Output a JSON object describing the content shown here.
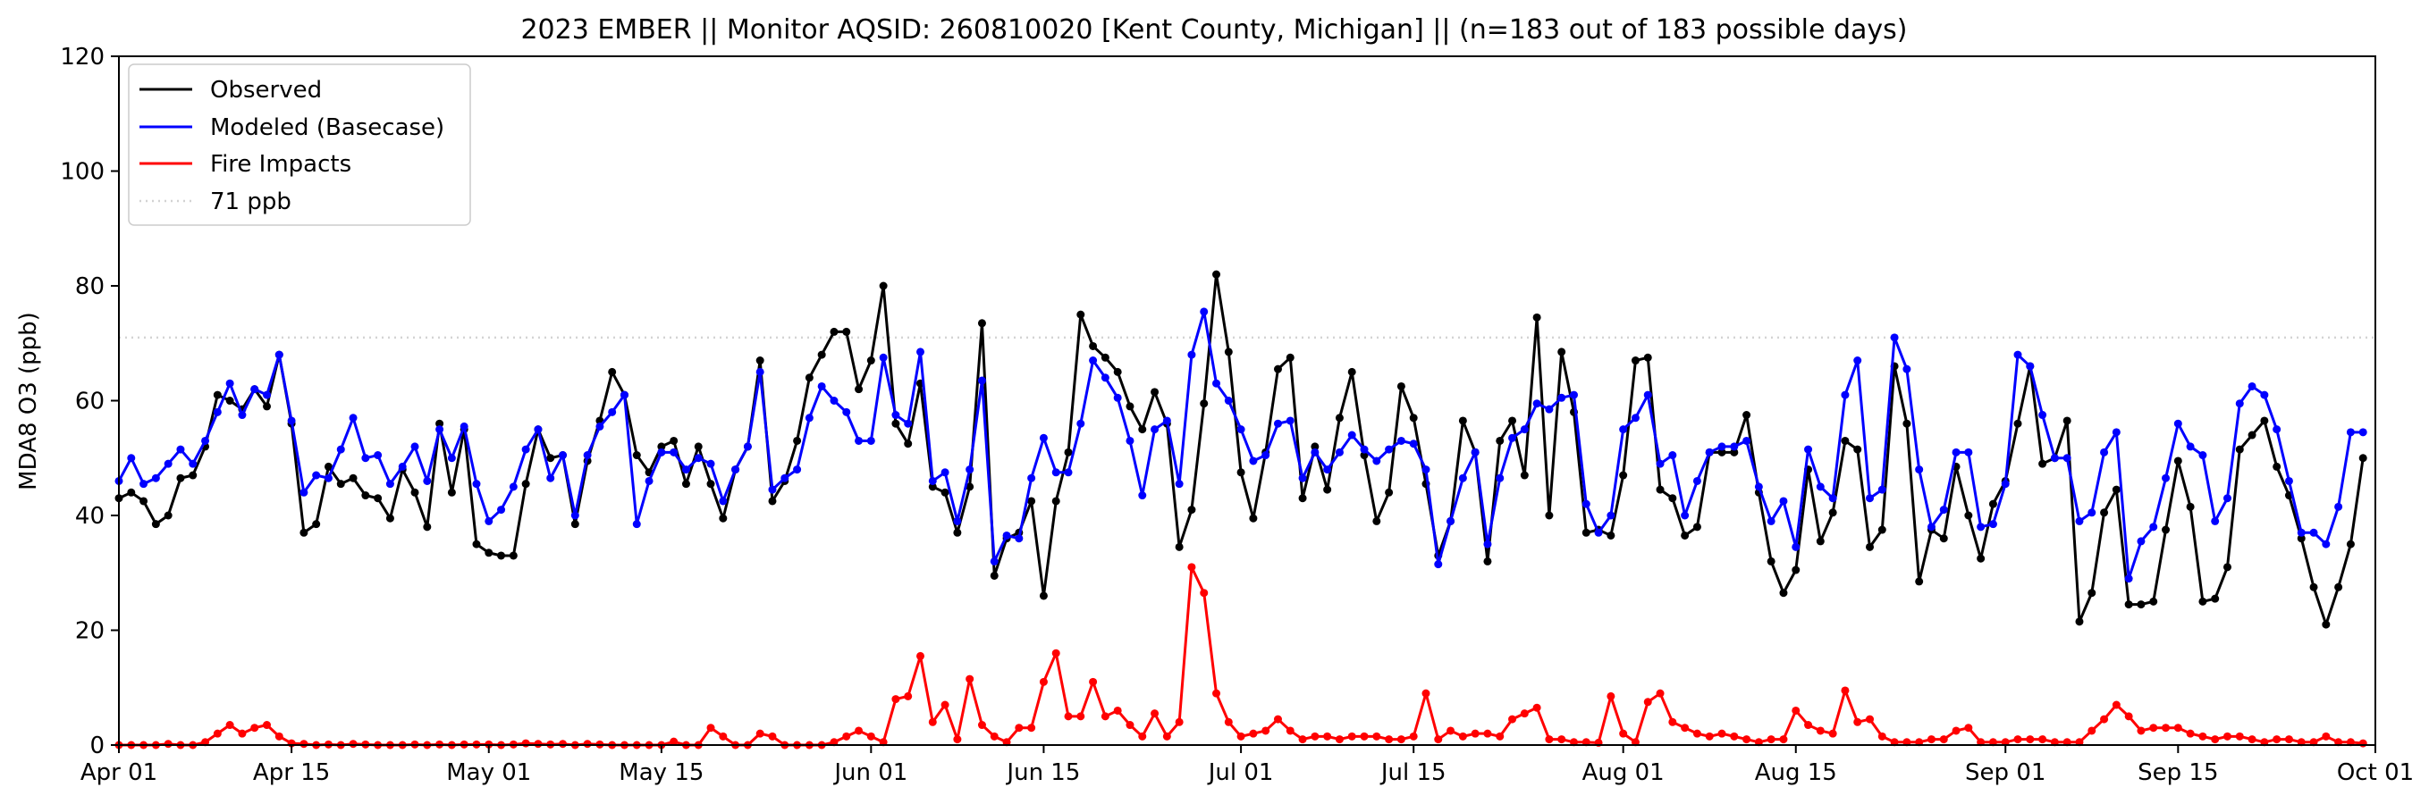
{
  "chart_data": {
    "type": "line",
    "title": "2023 EMBER || Monitor AQSID: 260810020 [Kent County, Michigan] || (n=183 out of 183 possible days)",
    "xlabel": "",
    "ylabel": "MDA8 O3 (ppb)",
    "x_start": "2023-04-01",
    "x_end": "2023-10-01",
    "xlim": [
      "2023-04-01",
      "2023-10-01"
    ],
    "ylim": [
      0,
      120
    ],
    "yticks": [
      0,
      20,
      40,
      60,
      80,
      100,
      120
    ],
    "xticks": [
      {
        "date": "2023-04-01",
        "label": "Apr 01"
      },
      {
        "date": "2023-04-15",
        "label": "Apr 15"
      },
      {
        "date": "2023-05-01",
        "label": "May 01"
      },
      {
        "date": "2023-05-15",
        "label": "May 15"
      },
      {
        "date": "2023-06-01",
        "label": "Jun 01"
      },
      {
        "date": "2023-06-15",
        "label": "Jun 15"
      },
      {
        "date": "2023-07-01",
        "label": "Jul 01"
      },
      {
        "date": "2023-07-15",
        "label": "Jul 15"
      },
      {
        "date": "2023-08-01",
        "label": "Aug 01"
      },
      {
        "date": "2023-08-15",
        "label": "Aug 15"
      },
      {
        "date": "2023-09-01",
        "label": "Sep 01"
      },
      {
        "date": "2023-09-15",
        "label": "Sep 15"
      },
      {
        "date": "2023-10-01",
        "label": "Oct 01"
      }
    ],
    "grid": false,
    "legend_position": "top-left",
    "series": [
      {
        "name": "Observed",
        "color": "#000000",
        "marker": true,
        "values": [
          43,
          44,
          42.5,
          38.5,
          40,
          46.5,
          47,
          52,
          61,
          60,
          58.5,
          62,
          59,
          68,
          56,
          37,
          38.5,
          48.5,
          45.5,
          46.5,
          43.5,
          43,
          39.5,
          48,
          44,
          38,
          56,
          44,
          55,
          35,
          33.5,
          33,
          33,
          45.5,
          55,
          50,
          50.5,
          38.5,
          49.5,
          56.5,
          65,
          61,
          50.5,
          47.5,
          52,
          53,
          45.5,
          52,
          45.5,
          39.5,
          48,
          52,
          67,
          42.5,
          46,
          53,
          64,
          68,
          72,
          72,
          62,
          67,
          80,
          56,
          52.5,
          63,
          45,
          44,
          37,
          45,
          73.5,
          29.5,
          36,
          37,
          42.5,
          26,
          42.5,
          51,
          75,
          69.5,
          67.5,
          65,
          59,
          55,
          61.5,
          56,
          34.5,
          41,
          59.5,
          82,
          68.5,
          47.5,
          39.5,
          51,
          65.5,
          67.5,
          43,
          52,
          44.5,
          57,
          65,
          50.5,
          39,
          44,
          62.5,
          57,
          45.5,
          33,
          39,
          56.5,
          51,
          32,
          53,
          56.5,
          47,
          74.5,
          40,
          68.5,
          58,
          37,
          37.5,
          36.5,
          47,
          67,
          67.5,
          44.5,
          43,
          36.5,
          38,
          51,
          51,
          51,
          57.5,
          44,
          32,
          26.5,
          30.5,
          48,
          35.5,
          40.5,
          53,
          51.5,
          34.5,
          37.5,
          66,
          56,
          28.5,
          37.5,
          36,
          48.5,
          40,
          32.5,
          42,
          46,
          56,
          66,
          49,
          50,
          56.5,
          21.5,
          26.5,
          40.5,
          44.5,
          24.5,
          24.5,
          25,
          37.5,
          49.5,
          41.5,
          25,
          25.5,
          31,
          51.5,
          54,
          56.5,
          48.5,
          43.5,
          36,
          27.5,
          21,
          27.5,
          35,
          50
        ]
      },
      {
        "name": "Modeled (Basecase)",
        "color": "#0000ff",
        "marker": true,
        "values": [
          46,
          50,
          45.5,
          46.5,
          49,
          51.5,
          49,
          53,
          58,
          63,
          57.5,
          62,
          61,
          68,
          56.5,
          44,
          47,
          46.5,
          51.5,
          57,
          50,
          50.5,
          45.5,
          48.5,
          52,
          46,
          55,
          50,
          55.5,
          45.5,
          39,
          41,
          45,
          51.5,
          55,
          46.5,
          50.5,
          40,
          50.5,
          55.5,
          58,
          61,
          38.5,
          46,
          51,
          51,
          48,
          50,
          49,
          42.5,
          48,
          52,
          65,
          44.5,
          46.5,
          48,
          57,
          62.5,
          60,
          58,
          53,
          53,
          67.5,
          57.5,
          56,
          68.5,
          46,
          47.5,
          39,
          48,
          63.5,
          32,
          36.5,
          36,
          46.5,
          53.5,
          47.5,
          47.5,
          56,
          67,
          64,
          60.5,
          53,
          43.5,
          55,
          56.5,
          45.5,
          68,
          75.5,
          63,
          60,
          55,
          49.5,
          50.5,
          56,
          56.5,
          46.5,
          51,
          48,
          51,
          54,
          51.5,
          49.5,
          51.5,
          53,
          52.5,
          48,
          31.5,
          39,
          46.5,
          51,
          35,
          46.5,
          53.5,
          55,
          59.5,
          58.5,
          60.5,
          61,
          42,
          37,
          40,
          55,
          57,
          61,
          49,
          50.5,
          40,
          46,
          51,
          52,
          52,
          53,
          45,
          39,
          42.5,
          34.5,
          51.5,
          45,
          43,
          61,
          67,
          43,
          44.5,
          71,
          65.5,
          48,
          38,
          41,
          51,
          51,
          38,
          38.5,
          45.5,
          68,
          66,
          57.5,
          50,
          50,
          39,
          40.5,
          51,
          54.5,
          29,
          35.5,
          38,
          46.5,
          56,
          52,
          50.5,
          39,
          43,
          59.5,
          62.5,
          61,
          55,
          46,
          37,
          37,
          35,
          41.5,
          54.5,
          54.5
        ]
      },
      {
        "name": "Fire Impacts",
        "color": "#ff0000",
        "marker": true,
        "values": [
          0,
          0,
          0,
          0,
          0.2,
          0,
          0,
          0.5,
          2,
          3.5,
          2,
          3,
          3.5,
          1.5,
          0.3,
          0.2,
          0,
          0.1,
          0,
          0.2,
          0.1,
          0,
          0,
          0,
          0.1,
          0,
          0.1,
          0,
          0.1,
          0.1,
          0.1,
          0,
          0.1,
          0.3,
          0.2,
          0.1,
          0.2,
          0,
          0.2,
          0.1,
          0,
          0,
          0,
          0,
          0,
          0.6,
          0,
          0,
          3,
          1.5,
          0,
          0,
          2,
          1.5,
          0,
          0,
          0,
          0,
          0.5,
          1.5,
          2.5,
          1.5,
          0.5,
          8,
          8.5,
          15.5,
          4,
          7,
          1,
          11.5,
          3.5,
          1.5,
          0.5,
          3,
          3,
          11,
          16,
          5,
          5,
          11,
          5,
          6,
          3.5,
          1.5,
          5.5,
          1.5,
          4,
          31,
          26.5,
          9,
          4,
          1.5,
          2,
          2.5,
          4.5,
          2.5,
          1,
          1.5,
          1.5,
          1,
          1.5,
          1.5,
          1.5,
          1,
          1,
          1.5,
          9,
          1,
          2.5,
          1.5,
          2,
          2,
          1.5,
          4.5,
          5.5,
          6.5,
          1,
          1,
          0.5,
          0.5,
          0.4,
          8.5,
          2,
          0.5,
          7.5,
          9,
          4,
          3,
          2,
          1.5,
          2,
          1.5,
          1,
          0.5,
          1,
          1,
          6,
          3.5,
          2.5,
          2,
          9.5,
          4,
          4.5,
          1.5,
          0.5,
          0.5,
          0.5,
          1,
          1,
          2.5,
          3,
          0.5,
          0.5,
          0.5,
          1,
          1,
          1,
          0.5,
          0.5,
          0.5,
          2.5,
          4.5,
          7,
          5,
          2.5,
          3,
          3,
          3,
          2,
          1.5,
          1,
          1.5,
          1.5,
          1,
          0.5,
          1,
          1,
          0.5,
          0.5,
          1.5,
          0.5,
          0.5,
          0.3
        ]
      }
    ],
    "reference_line": {
      "name": "71 ppb",
      "value": 71,
      "color": "#d3d3d3",
      "style": "dotted"
    }
  }
}
